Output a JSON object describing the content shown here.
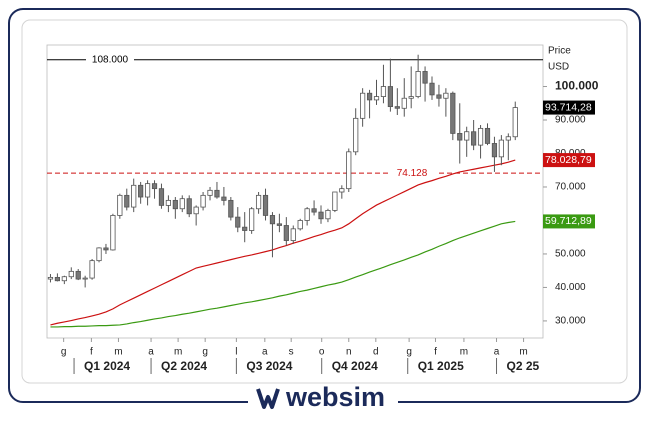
{
  "chart_data": {
    "type": "candlestick",
    "y_label": "Price",
    "currency": "USD",
    "ylim": [
      24900,
      112400
    ],
    "xlim": [
      -0.5,
      71
    ],
    "yticks": [
      {
        "value": 30000,
        "label": "30.000"
      },
      {
        "value": 40000,
        "label": "40.000"
      },
      {
        "value": 50000,
        "label": "50.000"
      },
      {
        "value": 60000,
        "label": "60.000"
      },
      {
        "value": 70000,
        "label": "70.000"
      },
      {
        "value": 80000,
        "label": "80.000"
      },
      {
        "value": 90000,
        "label": "90.000"
      },
      {
        "value": 100000,
        "label": "100.000"
      }
    ],
    "xticks": [
      {
        "value": 1.9,
        "label": "g"
      },
      {
        "value": 5.9,
        "label": "f"
      },
      {
        "value": 9.8,
        "label": "m"
      },
      {
        "value": 14.5,
        "label": "a"
      },
      {
        "value": 18.4,
        "label": "m"
      },
      {
        "value": 22.3,
        "label": "g"
      },
      {
        "value": 26.8,
        "label": "l"
      },
      {
        "value": 30.9,
        "label": "a"
      },
      {
        "value": 34.7,
        "label": "s"
      },
      {
        "value": 39.1,
        "label": "o"
      },
      {
        "value": 43.0,
        "label": "n"
      },
      {
        "value": 46.9,
        "label": "d"
      },
      {
        "value": 51.7,
        "label": "g"
      },
      {
        "value": 55.5,
        "label": "f"
      },
      {
        "value": 59.6,
        "label": "m"
      },
      {
        "value": 64.3,
        "label": "a"
      },
      {
        "value": 68.2,
        "label": "m"
      }
    ],
    "quarters": [
      {
        "value": 3.4,
        "label": "Q1 2024"
      },
      {
        "value": 14.5,
        "label": "Q2 2024"
      },
      {
        "value": 26.8,
        "label": "Q3 2024"
      },
      {
        "value": 39.1,
        "label": "Q4 2024"
      },
      {
        "value": 51.5,
        "label": "Q1 2025"
      },
      {
        "value": 64.3,
        "label": "Q2 25"
      }
    ],
    "up_color": "#ffffff",
    "down_color": "#777777",
    "ohlc": [
      [
        42500,
        44000,
        41500,
        43000
      ],
      [
        43000,
        44200,
        41800,
        42000
      ],
      [
        42000,
        43500,
        41000,
        43200
      ],
      [
        43200,
        46000,
        42500,
        44800
      ],
      [
        44800,
        45500,
        42200,
        42500
      ],
      [
        42500,
        43500,
        40000,
        42800
      ],
      [
        42800,
        48500,
        42300,
        48000
      ],
      [
        48000,
        52000,
        47500,
        51800
      ],
      [
        51800,
        53000,
        50000,
        51200
      ],
      [
        51200,
        62000,
        51000,
        61500
      ],
      [
        61500,
        68000,
        60500,
        67500
      ],
      [
        67500,
        69500,
        63000,
        64000
      ],
      [
        64000,
        72500,
        62500,
        70500
      ],
      [
        70500,
        71500,
        65000,
        67000
      ],
      [
        67000,
        72000,
        64500,
        71000
      ],
      [
        71000,
        72000,
        66500,
        69500
      ],
      [
        69500,
        71000,
        63500,
        64500
      ],
      [
        64500,
        67500,
        62500,
        66000
      ],
      [
        66000,
        67000,
        60500,
        63500
      ],
      [
        63500,
        67500,
        62500,
        66500
      ],
      [
        66500,
        67500,
        61000,
        62000
      ],
      [
        62000,
        64500,
        58500,
        64000
      ],
      [
        64000,
        68500,
        63000,
        67500
      ],
      [
        67500,
        70000,
        66000,
        69000
      ],
      [
        69000,
        71500,
        66500,
        67000
      ],
      [
        67000,
        70000,
        64500,
        66000
      ],
      [
        66000,
        67000,
        60000,
        61000
      ],
      [
        61000,
        64000,
        56500,
        58000
      ],
      [
        58000,
        62500,
        53500,
        57000
      ],
      [
        57000,
        64000,
        56000,
        63500
      ],
      [
        63500,
        68500,
        62000,
        67500
      ],
      [
        67500,
        69500,
        60000,
        61500
      ],
      [
        61500,
        62500,
        49000,
        59000
      ],
      [
        59000,
        62000,
        56500,
        58500
      ],
      [
        58500,
        61000,
        52500,
        54000
      ],
      [
        54000,
        58500,
        53000,
        57500
      ],
      [
        57500,
        60500,
        57000,
        60000
      ],
      [
        60000,
        64000,
        58500,
        63500
      ],
      [
        63500,
        66000,
        61500,
        62500
      ],
      [
        62500,
        64500,
        59000,
        60500
      ],
      [
        60500,
        63500,
        59500,
        63000
      ],
      [
        63000,
        68500,
        62500,
        68500
      ],
      [
        68500,
        70500,
        66500,
        69500
      ],
      [
        69500,
        81500,
        68500,
        80500
      ],
      [
        80500,
        93500,
        79500,
        90500
      ],
      [
        90500,
        99500,
        88000,
        98000
      ],
      [
        98000,
        99000,
        90500,
        96000
      ],
      [
        96000,
        102000,
        94500,
        97000
      ],
      [
        97000,
        106500,
        95000,
        100000
      ],
      [
        100000,
        108300,
        92500,
        94000
      ],
      [
        94000,
        99500,
        91500,
        93500
      ],
      [
        93500,
        102500,
        91000,
        96500
      ],
      [
        96500,
        106000,
        93500,
        97000
      ],
      [
        97000,
        109500,
        96500,
        104500
      ],
      [
        104500,
        106000,
        95500,
        101000
      ],
      [
        101000,
        103000,
        96000,
        97500
      ],
      [
        97500,
        100500,
        94000,
        96500
      ],
      [
        96500,
        99500,
        91000,
        98000
      ],
      [
        98000,
        98500,
        84000,
        86000
      ],
      [
        86000,
        95000,
        77000,
        84000
      ],
      [
        84000,
        88000,
        79000,
        86500
      ],
      [
        86500,
        90000,
        81000,
        82500
      ],
      [
        82500,
        88500,
        78500,
        87500
      ],
      [
        87500,
        89000,
        82500,
        83000
      ],
      [
        83000,
        85000,
        74500,
        79000
      ],
      [
        79000,
        85500,
        76500,
        84000
      ],
      [
        84000,
        86000,
        78000,
        85000
      ],
      [
        85000,
        95500,
        84000,
        93714.28
      ]
    ],
    "last_label": "93.714,28",
    "series": [
      {
        "color": "#cc1111",
        "last_label": "78.028,79",
        "values": [
          28800,
          29300,
          29700,
          30100,
          30600,
          31000,
          31500,
          32000,
          32700,
          33600,
          34800,
          35800,
          36800,
          37800,
          38800,
          39800,
          40800,
          41800,
          42800,
          43800,
          44800,
          45800,
          46300,
          46800,
          47300,
          47800,
          48300,
          48800,
          49300,
          49700,
          50200,
          50700,
          51200,
          51900,
          52500,
          53200,
          53800,
          54500,
          55200,
          55800,
          56500,
          57100,
          57800,
          59000,
          60500,
          62000,
          63300,
          64600,
          65600,
          66600,
          67600,
          68600,
          69600,
          70600,
          71300,
          71900,
          72600,
          73200,
          73900,
          74500,
          74900,
          75300,
          75700,
          76100,
          76500,
          76900,
          77400,
          78028.79
        ]
      },
      {
        "color": "#3a9a12",
        "last_label": "59.712,89",
        "values": [
          28200,
          28200,
          28300,
          28300,
          28400,
          28400,
          28500,
          28600,
          28600,
          28700,
          28800,
          29100,
          29500,
          29800,
          30200,
          30600,
          30900,
          31300,
          31600,
          32000,
          32300,
          32700,
          33100,
          33500,
          33800,
          34200,
          34600,
          35000,
          35400,
          35700,
          36100,
          36500,
          36900,
          37400,
          37800,
          38300,
          38800,
          39200,
          39700,
          40200,
          40700,
          41100,
          41600,
          42300,
          43100,
          43800,
          44600,
          45300,
          46000,
          46800,
          47500,
          48200,
          49000,
          49700,
          50600,
          51400,
          52300,
          53100,
          54000,
          54800,
          55500,
          56200,
          56900,
          57600,
          58300,
          59000,
          59400,
          59712.89
        ]
      }
    ],
    "hlines": [
      {
        "value": 108000,
        "label": "108.000",
        "color": "#000000",
        "dashed": false
      },
      {
        "value": 74128,
        "label": "74.128",
        "color": "#cc1111",
        "dashed": true
      }
    ]
  },
  "footer": {
    "brand": "websim"
  }
}
